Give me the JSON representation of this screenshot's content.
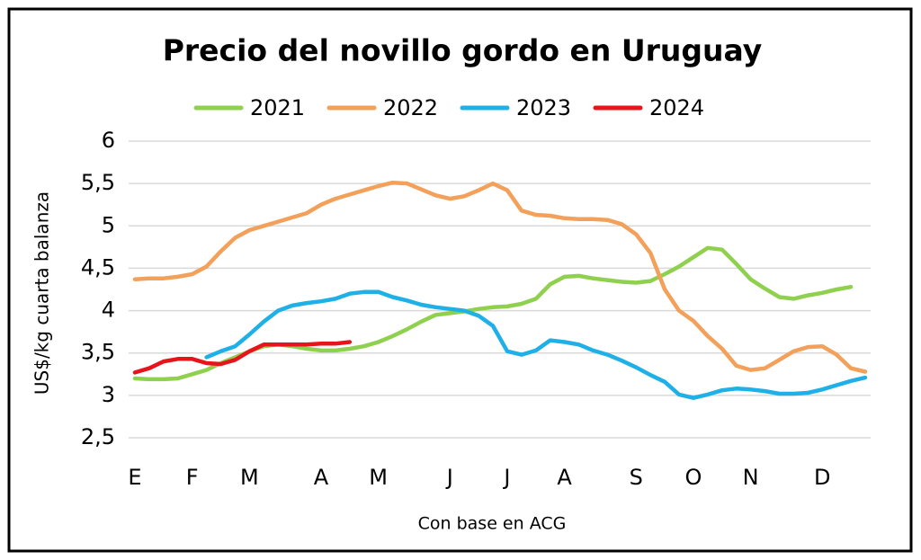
{
  "chart_data": {
    "type": "line",
    "title": "Precio del novillo gordo en Uruguay",
    "y_label": "US$/kg cuarta balanza",
    "x_label": "Con base en ACG",
    "x": [
      1,
      2,
      3,
      4,
      5,
      6,
      7,
      8,
      9,
      10,
      11,
      12,
      13,
      14,
      15,
      16,
      17,
      18,
      19,
      20,
      21,
      22,
      23,
      24,
      25,
      26,
      27,
      28,
      29,
      30,
      31,
      32,
      33,
      34,
      35,
      36,
      37,
      38,
      39,
      40,
      41,
      42,
      43,
      44,
      45,
      46,
      47,
      48,
      49,
      50,
      51,
      52
    ],
    "xlim": [
      1,
      52
    ],
    "xticks": [
      {
        "value": 1,
        "label": "E"
      },
      {
        "value": 5,
        "label": "F"
      },
      {
        "value": 9,
        "label": "M"
      },
      {
        "value": 14,
        "label": "A"
      },
      {
        "value": 18,
        "label": "M"
      },
      {
        "value": 23,
        "label": "J"
      },
      {
        "value": 27,
        "label": "J"
      },
      {
        "value": 31,
        "label": "A"
      },
      {
        "value": 36,
        "label": "S"
      },
      {
        "value": 40,
        "label": "O"
      },
      {
        "value": 44,
        "label": "N"
      },
      {
        "value": 49,
        "label": "D"
      }
    ],
    "ylim": [
      2.5,
      6
    ],
    "yticks": [
      {
        "value": 2.5,
        "label": "2,5"
      },
      3,
      {
        "value": 3.5,
        "label": "3,5"
      },
      4,
      {
        "value": 4.5,
        "label": "4,5"
      },
      5,
      {
        "value": 5.5,
        "label": "5,5"
      },
      6
    ],
    "grid": true,
    "legend": "top",
    "series": [
      {
        "name": "2021",
        "color": "#8fd14f",
        "values": [
          3.2,
          3.19,
          3.19,
          3.2,
          3.25,
          3.3,
          3.38,
          3.45,
          3.52,
          3.58,
          3.6,
          3.58,
          3.55,
          3.53,
          3.53,
          3.55,
          3.58,
          3.63,
          3.7,
          3.78,
          3.87,
          3.95,
          3.97,
          3.99,
          4.02,
          4.04,
          4.05,
          4.08,
          4.14,
          4.31,
          4.4,
          4.41,
          4.38,
          4.36,
          4.34,
          4.33,
          4.35,
          4.43,
          4.52,
          4.63,
          4.74,
          4.72,
          4.55,
          4.37,
          4.26,
          4.16,
          4.14,
          4.18,
          4.21,
          4.25,
          4.28,
          null
        ]
      },
      {
        "name": "2022",
        "color": "#f3a05a",
        "values": [
          4.37,
          4.38,
          4.38,
          4.4,
          4.43,
          4.52,
          4.7,
          4.86,
          4.95,
          5.0,
          5.05,
          5.1,
          5.15,
          5.25,
          5.32,
          5.37,
          5.42,
          5.47,
          5.51,
          5.5,
          5.43,
          5.36,
          5.32,
          5.35,
          5.42,
          5.5,
          5.42,
          5.18,
          5.13,
          5.12,
          5.09,
          5.08,
          5.08,
          5.07,
          5.02,
          4.9,
          4.68,
          4.25,
          4.0,
          3.88,
          3.7,
          3.55,
          3.35,
          3.3,
          3.32,
          3.42,
          3.52,
          3.57,
          3.58,
          3.48,
          3.32,
          3.28
        ]
      },
      {
        "name": "2023",
        "color": "#1eb0e6",
        "values": [
          null,
          null,
          null,
          null,
          null,
          3.45,
          3.52,
          3.58,
          3.72,
          3.87,
          4.0,
          4.06,
          4.09,
          4.11,
          4.14,
          4.2,
          4.22,
          4.22,
          4.16,
          4.12,
          4.07,
          4.04,
          4.02,
          4.0,
          3.94,
          3.82,
          3.52,
          3.48,
          3.53,
          3.65,
          3.63,
          3.6,
          3.53,
          3.48,
          3.41,
          3.33,
          3.24,
          3.16,
          3.01,
          2.97,
          3.01,
          3.06,
          3.08,
          3.07,
          3.05,
          3.02,
          3.02,
          3.03,
          3.07,
          3.12,
          3.17,
          3.21
        ]
      },
      {
        "name": "2024",
        "color": "#e8141c",
        "values": [
          3.27,
          3.32,
          3.4,
          3.43,
          3.43,
          3.38,
          3.37,
          3.42,
          3.52,
          3.6,
          3.6,
          3.6,
          3.6,
          3.61,
          3.61,
          3.63,
          null,
          null,
          null,
          null,
          null,
          null,
          null,
          null,
          null,
          null,
          null,
          null,
          null,
          null,
          null,
          null,
          null,
          null,
          null,
          null,
          null,
          null,
          null,
          null,
          null,
          null,
          null,
          null,
          null,
          null,
          null,
          null,
          null,
          null,
          null,
          null
        ]
      }
    ]
  }
}
